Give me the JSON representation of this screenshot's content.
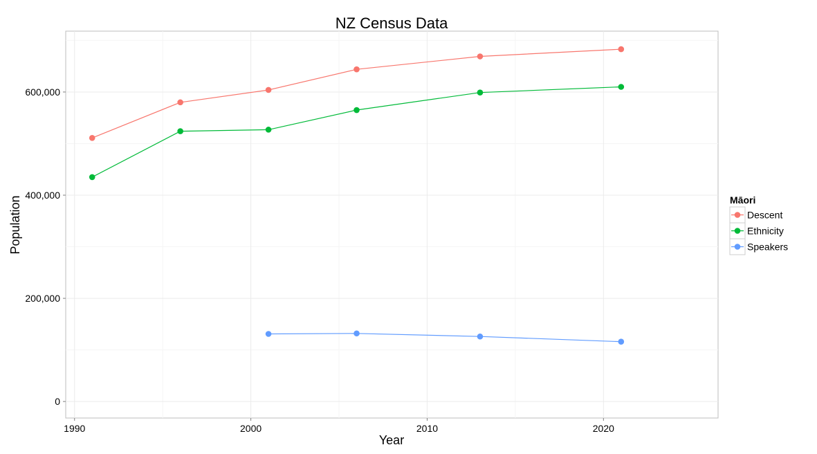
{
  "chart_data": {
    "type": "line",
    "title": "NZ Census Data",
    "xlabel": "Year",
    "ylabel": "Population",
    "xlim": [
      1989.5,
      2026.5
    ],
    "ylim": [
      -32000,
      718000
    ],
    "x_ticks": [
      1990,
      2000,
      2010,
      2020
    ],
    "x_tick_labels": [
      "1990",
      "2000",
      "2010",
      "2020"
    ],
    "y_ticks": [
      0,
      200000,
      400000,
      600000
    ],
    "y_tick_labels": [
      "0",
      "200,000",
      "400,000",
      "600,000"
    ],
    "grid": true,
    "legend": {
      "title": "Māori",
      "position": "right"
    },
    "series": [
      {
        "name": "Descent",
        "color": "#F8766D",
        "x": [
          1991,
          1996,
          2001,
          2006,
          2013,
          2021
        ],
        "y": [
          511000,
          580000,
          604000,
          644000,
          669000,
          683000
        ]
      },
      {
        "name": "Ethnicity",
        "color": "#00BA38",
        "x": [
          1991,
          1996,
          2001,
          2006,
          2013,
          2021
        ],
        "y": [
          435000,
          524000,
          527000,
          565000,
          599000,
          610000
        ]
      },
      {
        "name": "Speakers",
        "color": "#619CFF",
        "x": [
          2001,
          2006,
          2013,
          2021
        ],
        "y": [
          131000,
          132000,
          126000,
          116000
        ]
      }
    ]
  }
}
